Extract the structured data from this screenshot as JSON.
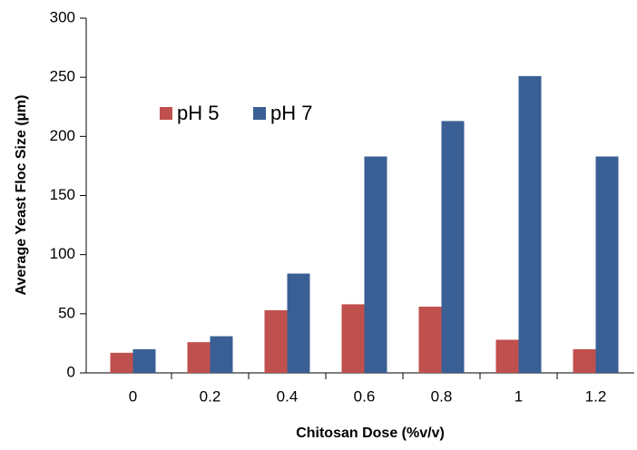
{
  "chart_data": {
    "type": "bar",
    "x_label": "Chitosan Dose (%v/v)",
    "y_label": "Average Yeast Floc Size (µm)",
    "categories": [
      "0",
      "0.2",
      "0.4",
      "0.6",
      "0.8",
      "1",
      "1.2"
    ],
    "series": [
      {
        "name": "pH 5",
        "color": "#c0504d",
        "values": [
          17,
          26,
          53,
          58,
          56,
          28,
          20
        ]
      },
      {
        "name": "pH 7",
        "color": "#3a5f95",
        "values": [
          20,
          31,
          84,
          183,
          213,
          251,
          183
        ]
      }
    ],
    "ylim": [
      0,
      300
    ],
    "yticks": [
      0,
      50,
      100,
      150,
      200,
      250,
      300
    ],
    "legend": "upper-left"
  }
}
